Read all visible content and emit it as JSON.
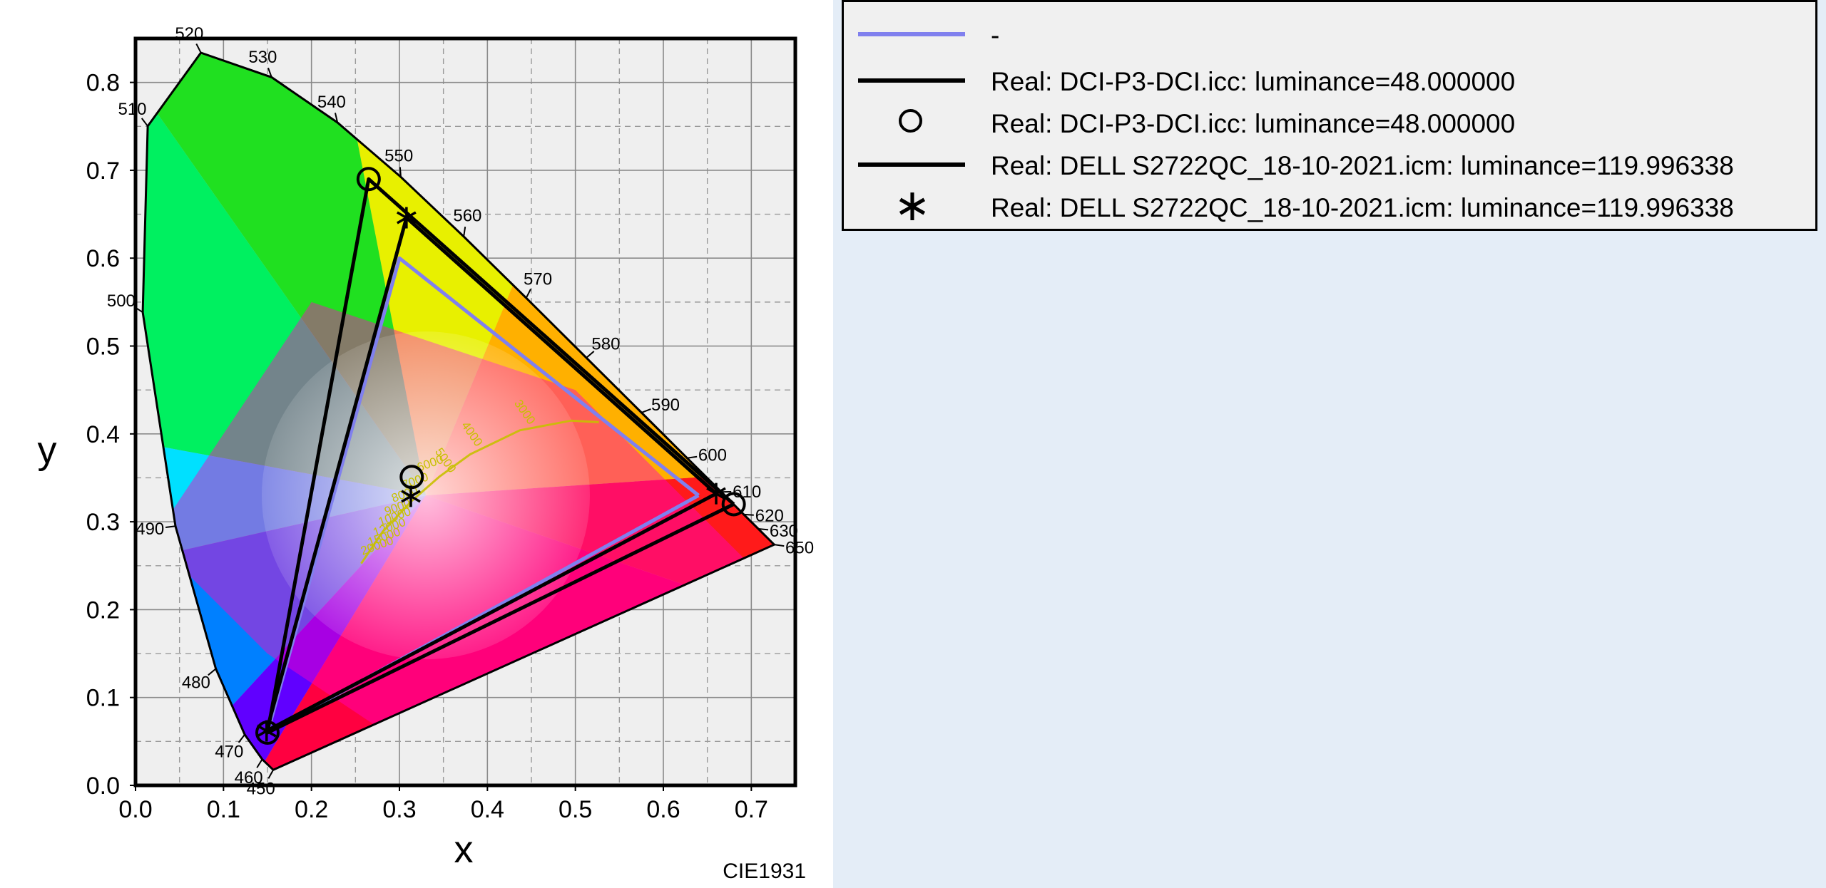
{
  "chart_data": {
    "type": "scatter",
    "diagram": "CIE 1931 chromaticity diagram",
    "footer_label": "CIE1931",
    "xlabel": "x",
    "ylabel": "y",
    "xlim": [
      0.0,
      0.75
    ],
    "ylim": [
      0.0,
      0.85
    ],
    "x_ticks": [
      "0.0",
      "0.1",
      "0.2",
      "0.3",
      "0.4",
      "0.5",
      "0.6",
      "0.7"
    ],
    "y_ticks": [
      "0.0",
      "0.1",
      "0.2",
      "0.3",
      "0.4",
      "0.5",
      "0.6",
      "0.7",
      "0.8"
    ],
    "grid": "major solid + minor dashed",
    "spectral_locus": [
      {
        "nm": 450,
        "x": 0.1566,
        "y": 0.0177
      },
      {
        "nm": 460,
        "x": 0.144,
        "y": 0.0297
      },
      {
        "nm": 470,
        "x": 0.1241,
        "y": 0.0578
      },
      {
        "nm": 480,
        "x": 0.0913,
        "y": 0.1327
      },
      {
        "nm": 490,
        "x": 0.0454,
        "y": 0.295
      },
      {
        "nm": 500,
        "x": 0.0082,
        "y": 0.5384
      },
      {
        "nm": 510,
        "x": 0.0139,
        "y": 0.7502
      },
      {
        "nm": 520,
        "x": 0.0743,
        "y": 0.8338
      },
      {
        "nm": 530,
        "x": 0.1547,
        "y": 0.8059
      },
      {
        "nm": 540,
        "x": 0.2296,
        "y": 0.7543
      },
      {
        "nm": 550,
        "x": 0.3016,
        "y": 0.6923
      },
      {
        "nm": 560,
        "x": 0.3731,
        "y": 0.6245
      },
      {
        "nm": 570,
        "x": 0.4441,
        "y": 0.5547
      },
      {
        "nm": 580,
        "x": 0.5125,
        "y": 0.4866
      },
      {
        "nm": 590,
        "x": 0.5752,
        "y": 0.4242
      },
      {
        "nm": 600,
        "x": 0.627,
        "y": 0.3725
      },
      {
        "nm": 610,
        "x": 0.6658,
        "y": 0.334
      },
      {
        "nm": 620,
        "x": 0.6915,
        "y": 0.3083
      },
      {
        "nm": 630,
        "x": 0.7079,
        "y": 0.292
      },
      {
        "nm": 650,
        "x": 0.726,
        "y": 0.274
      }
    ],
    "planckian_locus": {
      "points": [
        [
          0.2565,
          0.2525
        ],
        [
          0.2807,
          0.2883
        ],
        [
          0.3138,
          0.3236
        ],
        [
          0.3457,
          0.3516
        ],
        [
          0.3805,
          0.3768
        ],
        [
          0.4369,
          0.4041
        ],
        [
          0.4951,
          0.4151
        ],
        [
          0.5267,
          0.4133
        ]
      ],
      "labels": [
        "20000",
        "15000",
        "12000",
        "10000",
        "9000",
        "8000",
        "7000",
        "6000",
        "5000",
        "4000",
        "3000"
      ]
    },
    "series": [
      {
        "name": "-",
        "type": "line",
        "color": "#8080ee",
        "points": [
          [
            0.64,
            0.33
          ],
          [
            0.3,
            0.6
          ],
          [
            0.15,
            0.06
          ],
          [
            0.64,
            0.33
          ]
        ]
      },
      {
        "name": "Real: DCI-P3-DCI.icc: luminance=48.000000",
        "type": "line",
        "color": "#000000",
        "points": [
          [
            0.68,
            0.32
          ],
          [
            0.265,
            0.69
          ],
          [
            0.15,
            0.06
          ],
          [
            0.68,
            0.32
          ]
        ]
      },
      {
        "name": "Real: DCI-P3-DCI.icc: luminance=48.000000",
        "type": "marker",
        "marker": "circle",
        "color": "#000000",
        "points": [
          [
            0.68,
            0.32
          ],
          [
            0.265,
            0.69
          ],
          [
            0.15,
            0.06
          ],
          [
            0.314,
            0.351
          ]
        ]
      },
      {
        "name": "Real: DELL S2722QC_18-10-2021.icm: luminance=119.996338",
        "type": "line",
        "color": "#000000",
        "points": [
          [
            0.66,
            0.332
          ],
          [
            0.308,
            0.646
          ],
          [
            0.149,
            0.062
          ],
          [
            0.66,
            0.332
          ]
        ]
      },
      {
        "name": "Real: DELL S2722QC_18-10-2021.icm: luminance=119.996338",
        "type": "marker",
        "marker": "asterisk",
        "color": "#000000",
        "points": [
          [
            0.66,
            0.332
          ],
          [
            0.308,
            0.646
          ],
          [
            0.149,
            0.062
          ],
          [
            0.313,
            0.329
          ]
        ]
      }
    ],
    "legend": {
      "placement": "right of plot",
      "entries": [
        {
          "label": "-",
          "swatch": "line",
          "color": "#8080ee"
        },
        {
          "label": "Real: DCI-P3-DCI.icc: luminance=48.000000",
          "swatch": "line",
          "color": "#000000"
        },
        {
          "label": "Real: DCI-P3-DCI.icc: luminance=48.000000",
          "swatch": "circle",
          "color": "#000000"
        },
        {
          "label": "Real: DELL S2722QC_18-10-2021.icm: luminance=119.996338",
          "swatch": "line",
          "color": "#000000"
        },
        {
          "label": "Real: DELL S2722QC_18-10-2021.icm: luminance=119.996338",
          "swatch": "asterisk",
          "color": "#000000"
        }
      ]
    }
  }
}
